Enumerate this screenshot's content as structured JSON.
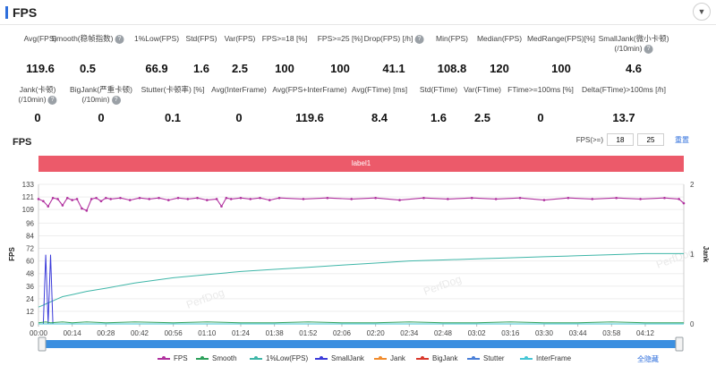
{
  "header": {
    "title": "FPS"
  },
  "metrics_row1": [
    {
      "label": "Avg(FPS)",
      "value": "119.6",
      "help": false
    },
    {
      "label": "Smooth(稳帧指数)",
      "value": "0.5",
      "help": true
    },
    {
      "label": "1%Low(FPS)",
      "value": "66.9",
      "help": false
    },
    {
      "label": "Std(FPS)",
      "value": "1.6",
      "help": false
    },
    {
      "label": "Var(FPS)",
      "value": "2.5",
      "help": false
    },
    {
      "label": "FPS>=18 [%]",
      "value": "100",
      "help": false
    },
    {
      "label": "FPS>=25 [%]",
      "value": "100",
      "help": false
    },
    {
      "label": "Drop(FPS) [/h]",
      "value": "41.1",
      "help": true
    },
    {
      "label": "Min(FPS)",
      "value": "108.8",
      "help": false
    },
    {
      "label": "Median(FPS)",
      "value": "120",
      "help": false
    },
    {
      "label": "MedRange(FPS)[%]",
      "value": "100",
      "help": false
    },
    {
      "label": "SmallJank(微小卡顿)",
      "label2": "(/10min)",
      "value": "4.6",
      "help": true
    }
  ],
  "metrics_row2": [
    {
      "label": "Jank(卡顿)",
      "label2": "(/10min)",
      "value": "0",
      "help": true
    },
    {
      "label": "BigJank(严重卡顿)",
      "label2": "(/10min)",
      "value": "0",
      "help": true
    },
    {
      "label": "Stutter(卡顿率) [%]",
      "value": "0.1",
      "help": false
    },
    {
      "label": "Avg(InterFrame)",
      "value": "0",
      "help": false
    },
    {
      "label": "Avg(FPS+InterFrame)",
      "value": "119.6",
      "help": false
    },
    {
      "label": "Avg(FTime) [ms]",
      "value": "8.4",
      "help": false
    },
    {
      "label": "Std(FTime)",
      "value": "1.6",
      "help": false
    },
    {
      "label": "Var(FTime)",
      "value": "2.5",
      "help": false
    },
    {
      "label": "FTime>=100ms [%]",
      "value": "0",
      "help": false
    },
    {
      "label": "Delta(FTime)>100ms [/h]",
      "value": "13.7",
      "help": false
    }
  ],
  "section": {
    "title": "FPS",
    "filter_label": "FPS(>=)",
    "filter_low": "18",
    "filter_high": "25",
    "reset_label": "重置",
    "label_bar": "label1",
    "toggle_all": "全隐藏"
  },
  "watermark": "PerfDog",
  "colors": {
    "fps": "#b0309e",
    "smooth": "#2ca05a",
    "low1": "#3fb6a8",
    "smalljank": "#3b3bd9",
    "jank": "#f08c2e",
    "bigjank": "#d9382c",
    "stutter": "#4a7fd8",
    "interframe": "#46c6d6",
    "label_bar": "#ec5a6a",
    "accent": "#2f6fdc"
  },
  "chart_data": {
    "type": "line",
    "ylabel": "FPS",
    "y2label": "Jank",
    "yticks": [
      0,
      12,
      24,
      36,
      48,
      60,
      72,
      84,
      96,
      109,
      121,
      133
    ],
    "y2ticks": [
      0,
      1,
      2
    ],
    "ylim": [
      0,
      133
    ],
    "y2lim": [
      0,
      2
    ],
    "xlim_seconds": [
      0,
      268
    ],
    "xticks": [
      "00:00",
      "00:14",
      "00:28",
      "00:42",
      "00:56",
      "01:10",
      "01:24",
      "01:38",
      "01:52",
      "02:06",
      "02:20",
      "02:34",
      "02:48",
      "03:02",
      "03:16",
      "03:30",
      "03:44",
      "03:58",
      "04:12"
    ],
    "legend": [
      "FPS",
      "Smooth",
      "1%Low(FPS)",
      "SmallJank",
      "Jank",
      "BigJank",
      "Stutter",
      "InterFrame"
    ],
    "series": [
      {
        "name": "FPS",
        "points": [
          [
            0,
            119
          ],
          [
            2,
            117
          ],
          [
            4,
            112
          ],
          [
            6,
            120
          ],
          [
            8,
            119
          ],
          [
            10,
            113
          ],
          [
            12,
            120
          ],
          [
            14,
            118
          ],
          [
            16,
            119
          ],
          [
            18,
            110
          ],
          [
            20,
            108
          ],
          [
            22,
            119
          ],
          [
            24,
            120
          ],
          [
            26,
            117
          ],
          [
            28,
            120
          ],
          [
            30,
            119
          ],
          [
            34,
            120
          ],
          [
            38,
            118
          ],
          [
            42,
            120
          ],
          [
            46,
            119
          ],
          [
            50,
            120
          ],
          [
            54,
            118
          ],
          [
            58,
            120
          ],
          [
            62,
            119
          ],
          [
            66,
            120
          ],
          [
            70,
            118
          ],
          [
            74,
            119
          ],
          [
            76,
            112
          ],
          [
            78,
            120
          ],
          [
            80,
            119
          ],
          [
            84,
            120
          ],
          [
            88,
            119
          ],
          [
            92,
            120
          ],
          [
            96,
            118
          ],
          [
            100,
            120
          ],
          [
            110,
            119
          ],
          [
            120,
            120
          ],
          [
            130,
            119
          ],
          [
            140,
            120
          ],
          [
            150,
            118
          ],
          [
            160,
            120
          ],
          [
            170,
            119
          ],
          [
            180,
            120
          ],
          [
            190,
            119
          ],
          [
            200,
            120
          ],
          [
            210,
            118
          ],
          [
            220,
            120
          ],
          [
            230,
            119
          ],
          [
            240,
            120
          ],
          [
            250,
            119
          ],
          [
            260,
            120
          ],
          [
            266,
            119
          ],
          [
            268,
            115
          ]
        ]
      },
      {
        "name": "1%Low(FPS)",
        "points": [
          [
            0,
            16
          ],
          [
            2,
            18
          ],
          [
            4,
            20
          ],
          [
            6,
            22
          ],
          [
            8,
            24
          ],
          [
            10,
            26
          ],
          [
            14,
            28
          ],
          [
            20,
            31
          ],
          [
            28,
            34
          ],
          [
            40,
            39
          ],
          [
            56,
            44
          ],
          [
            70,
            47
          ],
          [
            84,
            50
          ],
          [
            98,
            52
          ],
          [
            112,
            54
          ],
          [
            126,
            56
          ],
          [
            140,
            58
          ],
          [
            154,
            60
          ],
          [
            168,
            61
          ],
          [
            182,
            62
          ],
          [
            196,
            63
          ],
          [
            210,
            64
          ],
          [
            224,
            65
          ],
          [
            238,
            66
          ],
          [
            252,
            67
          ],
          [
            268,
            67
          ]
        ]
      },
      {
        "name": "SmallJank",
        "points": [
          [
            0,
            0
          ],
          [
            2,
            0
          ],
          [
            3,
            1
          ],
          [
            4,
            0
          ],
          [
            5,
            1
          ],
          [
            6,
            0
          ],
          [
            268,
            0
          ]
        ]
      },
      {
        "name": "Smooth",
        "points": [
          [
            0,
            1
          ],
          [
            3,
            2
          ],
          [
            5,
            1
          ],
          [
            10,
            2
          ],
          [
            14,
            1
          ],
          [
            20,
            2
          ],
          [
            28,
            1
          ],
          [
            40,
            2
          ],
          [
            56,
            1
          ],
          [
            70,
            2
          ],
          [
            84,
            1
          ],
          [
            98,
            1
          ],
          [
            112,
            2
          ],
          [
            126,
            1
          ],
          [
            140,
            1
          ],
          [
            154,
            2
          ],
          [
            168,
            1
          ],
          [
            182,
            1
          ],
          [
            196,
            2
          ],
          [
            210,
            1
          ],
          [
            224,
            1
          ],
          [
            238,
            2
          ],
          [
            252,
            1
          ],
          [
            268,
            1
          ]
        ]
      },
      {
        "name": "Stutter",
        "points": [
          [
            0,
            0
          ],
          [
            268,
            0
          ]
        ]
      },
      {
        "name": "InterFrame",
        "points": [
          [
            0,
            0
          ],
          [
            268,
            0
          ]
        ]
      }
    ]
  }
}
